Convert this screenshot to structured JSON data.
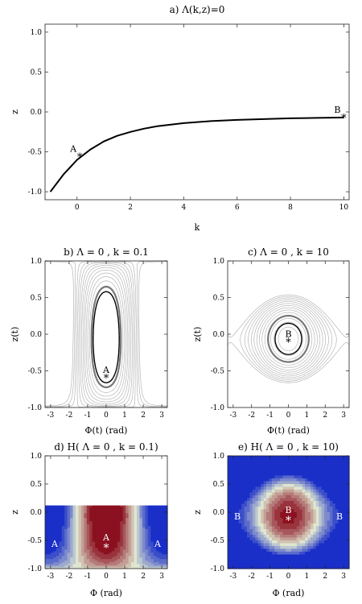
{
  "chart_data": [
    {
      "type": "line",
      "title": "a) Λ(k,z)=0",
      "xlabel": "k",
      "ylabel": "z",
      "xlim": [
        -1.2,
        10.2
      ],
      "ylim": [
        -1.1,
        1.1
      ],
      "xticks": [
        0,
        2,
        4,
        6,
        8,
        10
      ],
      "yticks": [
        -1.0,
        -0.5,
        0.0,
        0.5,
        1.0
      ],
      "xtick_labels": [
        "0",
        "2",
        "4",
        "6",
        "8",
        "10"
      ],
      "ytick_labels": [
        "-1.0",
        "-0.5",
        "0.0",
        "0.5",
        "1.0"
      ],
      "series": [
        {
          "x": [
            -1,
            -0.5,
            0,
            0.5,
            1,
            1.5,
            2,
            2.5,
            3,
            4,
            5,
            6,
            7,
            8,
            9,
            10
          ],
          "y": [
            -1.0,
            -0.78,
            -0.6,
            -0.47,
            -0.37,
            -0.3,
            -0.25,
            -0.21,
            -0.18,
            -0.14,
            -0.115,
            -0.1,
            -0.09,
            -0.08,
            -0.075,
            -0.07
          ]
        }
      ],
      "points": [
        {
          "label": "A",
          "x": 0.1,
          "y": -0.56
        },
        {
          "label": "B",
          "x": 10,
          "y": -0.07
        }
      ]
    },
    {
      "type": "contour",
      "title": "b) Λ = 0 , k = 0.1",
      "xlabel": "Φ(t) (rad)",
      "ylabel": "z(t)",
      "xlim": [
        -3.3,
        3.3
      ],
      "ylim": [
        -1.0,
        1.0
      ],
      "xticks": [
        -3,
        -2,
        -1,
        0,
        1,
        2,
        3
      ],
      "yticks": [
        -1.0,
        -0.5,
        0.0,
        0.5,
        1.0
      ],
      "xtick_labels": [
        "-3",
        "-2",
        "-1",
        "0",
        "1",
        "2",
        "3"
      ],
      "ytick_labels": [
        "-1.0",
        "-0.5",
        "0.0",
        "0.5",
        "1.0"
      ],
      "fixed_point": {
        "label": "A",
        "x": 0,
        "y": -0.56
      }
    },
    {
      "type": "contour",
      "title": "c) Λ = 0 , k = 10",
      "xlabel": "Φ(t) (rad)",
      "ylabel": "z(t)",
      "xlim": [
        -3.3,
        3.3
      ],
      "ylim": [
        -1.0,
        1.0
      ],
      "xticks": [
        -3,
        -2,
        -1,
        0,
        1,
        2,
        3
      ],
      "yticks": [
        -1.0,
        -0.5,
        0.0,
        0.5,
        1.0
      ],
      "xtick_labels": [
        "-3",
        "-2",
        "-1",
        "0",
        "1",
        "2",
        "3"
      ],
      "ytick_labels": [
        "-1.0",
        "-0.5",
        "0.0",
        "0.5",
        "1.0"
      ],
      "fixed_point": {
        "label": "B",
        "x": 0,
        "y": -0.07
      }
    },
    {
      "type": "heatmap",
      "title": "d) H( Λ = 0 , k = 0.1)",
      "xlabel": "Φ (rad)",
      "ylabel": "z",
      "xlim": [
        -3.3,
        3.3
      ],
      "ylim": [
        -1.0,
        1.0
      ],
      "xticks": [
        -3,
        -2,
        -1,
        0,
        1,
        2,
        3
      ],
      "yticks": [
        -1.0,
        -0.5,
        0.0,
        0.5,
        1.0
      ],
      "xtick_labels": [
        "-3",
        "-2",
        "-1",
        "0",
        "1",
        "2",
        "3"
      ],
      "ytick_labels": [
        "-1.0",
        "-0.5",
        "0.0",
        "0.5",
        "1.0"
      ],
      "colormap": {
        "low": "#1a2fc8",
        "mid": "#dfe6d0",
        "high": "#8b1020"
      },
      "points": [
        {
          "label": "A",
          "x": 0,
          "y": -0.56
        },
        {
          "label": "A",
          "x": -3.14,
          "y": -0.56
        },
        {
          "label": "A",
          "x": 3.14,
          "y": -0.56
        }
      ]
    },
    {
      "type": "heatmap",
      "title": "e) H( Λ = 0 , k = 10)",
      "xlabel": "Φ (rad)",
      "ylabel": "z",
      "xlim": [
        -3.3,
        3.3
      ],
      "ylim": [
        -1.0,
        1.0
      ],
      "xticks": [
        -3,
        -2,
        -1,
        0,
        1,
        2,
        3
      ],
      "yticks": [
        -1.0,
        -0.5,
        0.0,
        0.5,
        1.0
      ],
      "xtick_labels": [
        "-3",
        "-2",
        "-1",
        "0",
        "1",
        "2",
        "3"
      ],
      "ytick_labels": [
        "-1.0",
        "-0.5",
        "0.0",
        "0.5",
        "1.0"
      ],
      "colormap": {
        "low": "#1a2fc8",
        "mid": "#dfe6d0",
        "high": "#8b1020"
      },
      "points": [
        {
          "label": "B",
          "x": 0,
          "y": -0.07
        },
        {
          "label": "B",
          "x": -3.14,
          "y": -0.07
        },
        {
          "label": "B",
          "x": 3.14,
          "y": -0.07
        }
      ]
    }
  ]
}
